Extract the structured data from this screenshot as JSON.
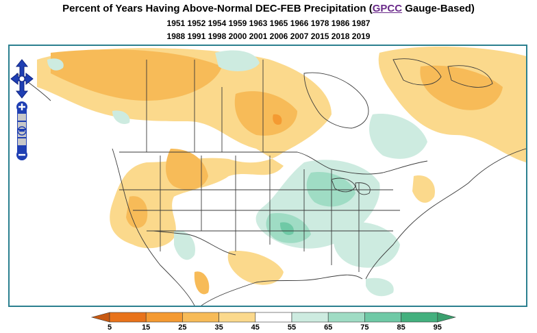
{
  "title": {
    "prefix": "Percent of Years Having Above-Normal DEC-FEB Precipitation (",
    "link": "GPCC",
    "suffix": " Gauge-Based)"
  },
  "years_line1": "1951 1952 1954 1959 1963 1965 1966 1978 1986 1987",
  "years_line2": "1988 1991 1998 2000 2001 2006 2007 2015 2018 2019",
  "map": {
    "frame_color": "#2a7f8f",
    "boundary_color": "#3a3a3a"
  },
  "navigation": {
    "pan_control": "pan-arrows-icon",
    "zoom_in": "+",
    "zoom_out": "−",
    "zoom_slider": "zoom-slider"
  },
  "legend": {
    "labels": [
      "5",
      "15",
      "25",
      "35",
      "45",
      "55",
      "65",
      "75",
      "85",
      "95"
    ],
    "colors": [
      "#e8731b",
      "#f49a32",
      "#f7bb58",
      "#fbd98c",
      "#ffffff",
      "#cdebe0",
      "#9fdcc4",
      "#6fc9a6",
      "#43b07e"
    ],
    "low_arrow_color": "#c85a12",
    "high_arrow_color": "#3aa06e"
  }
}
